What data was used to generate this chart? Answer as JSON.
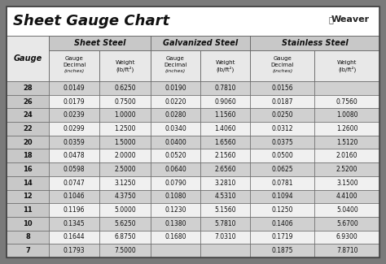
{
  "title": "Sheet Gauge Chart",
  "bg_outer": "#7a7a7a",
  "bg_inner": "#ffffff",
  "title_bg": "#ffffff",
  "hdr_section_bg": "#c8c8c8",
  "hdr_sub_bg": "#e8e8e8",
  "gauge_col_bg": "#c8c8c8",
  "row_dark": "#d0d0d0",
  "row_light": "#f0f0f0",
  "gauges": [
    28,
    26,
    24,
    22,
    20,
    18,
    16,
    14,
    12,
    11,
    10,
    8,
    7
  ],
  "ss_decimal": [
    "0.0149",
    "0.0179",
    "0.0239",
    "0.0299",
    "0.0359",
    "0.0478",
    "0.0598",
    "0.0747",
    "0.1046",
    "0.1196",
    "0.1345",
    "0.1644",
    "0.1793"
  ],
  "ss_weight": [
    "0.6250",
    "0.7500",
    "1.0000",
    "1.2500",
    "1.5000",
    "2.0000",
    "2.5000",
    "3.1250",
    "4.3750",
    "5.0000",
    "5.6250",
    "6.8750",
    "7.5000"
  ],
  "gv_decimal": [
    "0.0190",
    "0.0220",
    "0.0280",
    "0.0340",
    "0.0400",
    "0.0520",
    "0.0640",
    "0.0790",
    "0.1080",
    "0.1230",
    "0.1380",
    "0.1680",
    ""
  ],
  "gv_weight": [
    "0.7810",
    "0.9060",
    "1.1560",
    "1.4060",
    "1.6560",
    "2.1560",
    "2.6560",
    "3.2810",
    "4.5310",
    "5.1560",
    "5.7810",
    "7.0310",
    ""
  ],
  "st_decimal": [
    "0.0156",
    "0.0187",
    "0.0250",
    "0.0312",
    "0.0375",
    "0.0500",
    "0.0625",
    "0.0781",
    "0.1094",
    "0.1250",
    "0.1406",
    "0.1719",
    "0.1875"
  ],
  "st_weight": [
    "",
    "0.7560",
    "1.0080",
    "1.2600",
    "1.5120",
    "2.0160",
    "2.5200",
    "3.1500",
    "4.4100",
    "5.0400",
    "5.6700",
    "6.9300",
    "7.8710"
  ]
}
